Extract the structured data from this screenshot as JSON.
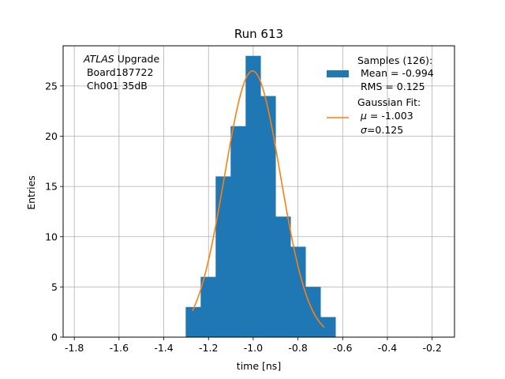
{
  "chart_data": {
    "type": "bar",
    "title": "Run 613",
    "xlabel": "time [ns]",
    "ylabel": "Entries",
    "xlim": [
      -1.85,
      -0.1
    ],
    "ylim": [
      0,
      29
    ],
    "grid": true,
    "xticks": [
      "-1.8",
      "-1.6",
      "-1.4",
      "-1.2",
      "-1.0",
      "-0.8",
      "-0.6",
      "-0.4",
      "-0.2"
    ],
    "yticks": [
      "0",
      "5",
      "10",
      "15",
      "20",
      "25"
    ],
    "annotation": {
      "line1_italic": "ATLAS",
      "line1_rest": " Upgrade",
      "line2": " Board187722",
      "line3": " Ch001 35dB"
    },
    "histogram": {
      "color": "#1f77b4",
      "bin_edges": [
        -1.302,
        -1.235,
        -1.168,
        -1.101,
        -1.034,
        -0.967,
        -0.9,
        -0.833,
        -0.766,
        -0.699,
        -0.632
      ],
      "counts": [
        3,
        6,
        16,
        21,
        28,
        24,
        12,
        9,
        5,
        2
      ]
    },
    "gaussian_fit": {
      "color": "#ff7f0e",
      "mu": -1.003,
      "sigma": 0.125,
      "amplitude": 26.5,
      "x_range": [
        -1.272,
        -0.682
      ]
    },
    "legend": {
      "position": "top-right",
      "hist_line1": "Samples (126):",
      "hist_line2": " Mean = -0.994",
      "hist_line3": " RMS = 0.125",
      "fit_line1": "Gaussian Fit:",
      "fit_line2_sym": "μ",
      "fit_line2_val": " = -1.003",
      "fit_line3_sym": "σ",
      "fit_line3_val": "=0.125"
    }
  }
}
